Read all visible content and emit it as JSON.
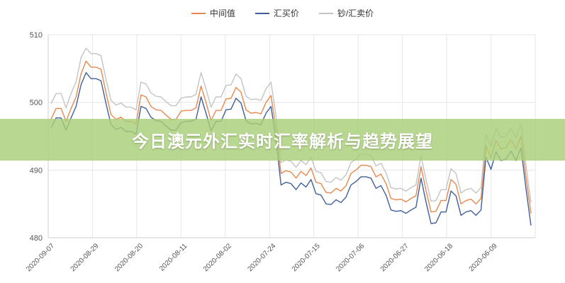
{
  "chart_data": {
    "type": "line",
    "title": "",
    "xlabel": "",
    "ylabel": "",
    "ylim": [
      480,
      510
    ],
    "yticks": [
      480,
      490,
      500,
      510
    ],
    "xtick_labels": [
      "2020-09-07",
      "2020-08-29",
      "2020-08-20",
      "2020-08-11",
      "2020-08-02",
      "2020-07-24",
      "2020-07-15",
      "2020-07-06",
      "2020-06-27",
      "2020-06-18",
      "2020-06-09"
    ],
    "legend_position": "top-center",
    "grid": true,
    "series": [
      {
        "name": "中间值",
        "color": "#e8884e",
        "values": [
          497.5,
          499.1,
          499.1,
          497.2,
          499.1,
          500.8,
          504.2,
          506.1,
          505.2,
          505.2,
          504.9,
          501.4,
          498.2,
          497.5,
          497.8,
          497.2,
          497.2,
          496.8,
          501.1,
          500.8,
          499.4,
          498.9,
          498.8,
          498.1,
          497.5,
          497.5,
          498.7,
          498.8,
          498.8,
          499.2,
          502.4,
          500.0,
          497.3,
          498.8,
          498.8,
          500.5,
          500.6,
          502.2,
          501.5,
          498.9,
          498.4,
          498.5,
          498.3,
          500.0,
          501.0,
          496.0,
          489.5,
          489.9,
          489.7,
          488.8,
          489.8,
          489.2,
          490.3,
          488.2,
          488.0,
          486.7,
          486.6,
          487.3,
          486.9,
          487.7,
          489.5,
          490.0,
          490.7,
          490.7,
          490.5,
          489.0,
          489.4,
          488.0,
          485.8,
          485.6,
          485.7,
          485.3,
          485.8,
          486.2,
          490.5,
          487.0,
          483.8,
          483.9,
          485.5,
          485.5,
          488.6,
          487.9,
          485.0,
          485.5,
          485.7,
          485.0,
          485.8,
          493.6,
          491.8,
          494.4,
          493.1,
          493.3,
          494.5,
          493.1,
          495.0,
          489.0,
          483.6
        ]
      },
      {
        "name": "汇买价",
        "color": "#3f5f9a",
        "values": [
          496.2,
          497.7,
          497.7,
          495.9,
          497.7,
          499.4,
          502.6,
          504.4,
          503.5,
          503.5,
          503.2,
          499.8,
          496.7,
          496.0,
          496.3,
          495.7,
          495.7,
          495.3,
          499.4,
          499.1,
          497.8,
          497.3,
          497.2,
          496.5,
          495.9,
          495.9,
          497.0,
          497.2,
          497.2,
          497.5,
          500.8,
          498.4,
          495.8,
          497.2,
          497.2,
          498.9,
          499.0,
          500.6,
          499.9,
          497.3,
          496.8,
          496.9,
          496.7,
          498.4,
          499.4,
          494.5,
          487.8,
          488.2,
          488.0,
          487.1,
          488.1,
          487.5,
          488.6,
          486.5,
          486.3,
          485.0,
          484.9,
          485.6,
          485.2,
          486.0,
          487.8,
          488.3,
          489.0,
          489.0,
          488.8,
          487.3,
          487.7,
          486.3,
          484.1,
          483.9,
          484.0,
          483.6,
          484.1,
          484.5,
          488.8,
          485.3,
          482.1,
          482.2,
          483.8,
          483.8,
          486.9,
          486.2,
          483.3,
          483.8,
          484.0,
          483.3,
          484.1,
          491.9,
          490.1,
          492.7,
          491.4,
          491.6,
          492.8,
          491.4,
          493.3,
          487.3,
          481.8
        ]
      },
      {
        "name": "钞/汇卖价",
        "color": "#c4c4c4",
        "values": [
          499.8,
          501.3,
          501.3,
          499.2,
          501.3,
          503.0,
          506.6,
          508.0,
          507.2,
          507.2,
          506.9,
          503.4,
          500.3,
          499.6,
          499.9,
          499.3,
          499.3,
          498.9,
          503.0,
          502.7,
          501.4,
          500.9,
          500.8,
          500.1,
          499.5,
          499.5,
          500.6,
          500.8,
          500.8,
          501.2,
          504.4,
          502.0,
          499.3,
          500.8,
          500.8,
          502.5,
          502.6,
          504.2,
          503.5,
          500.9,
          500.4,
          500.5,
          500.3,
          502.0,
          503.0,
          498.0,
          491.1,
          491.5,
          491.3,
          490.4,
          491.4,
          490.8,
          491.9,
          489.8,
          489.6,
          488.3,
          488.2,
          488.9,
          488.5,
          489.3,
          491.1,
          491.6,
          492.3,
          492.3,
          492.1,
          490.6,
          491.0,
          489.6,
          487.4,
          487.2,
          487.3,
          486.9,
          487.4,
          487.8,
          492.1,
          488.6,
          485.4,
          485.5,
          487.1,
          487.1,
          490.2,
          489.5,
          486.6,
          487.1,
          487.3,
          486.6,
          487.4,
          495.3,
          493.5,
          496.1,
          494.8,
          495.0,
          496.2,
          494.8,
          496.8,
          490.7,
          485.2
        ]
      }
    ]
  },
  "banner": {
    "title": "今日澳元外汇实时汇率解析与趋势展望"
  }
}
